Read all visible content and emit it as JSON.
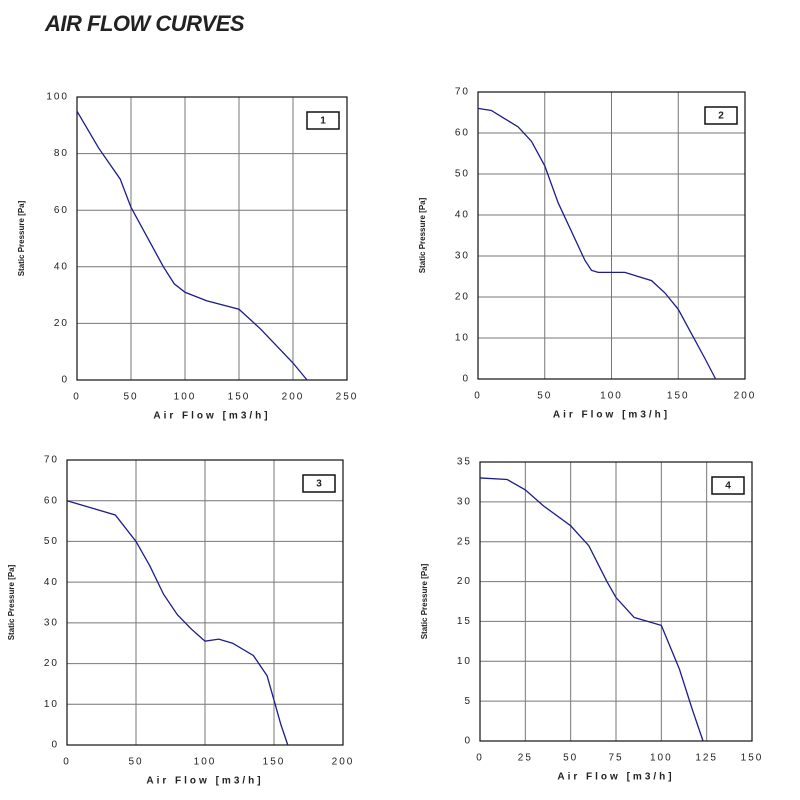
{
  "title": "AIR FLOW CURVES",
  "chart_data": [
    {
      "type": "line",
      "annotation": "1",
      "x_label": "Air Flow [m3/h]",
      "y_label": "Static Pressure [Pa]",
      "color": "#1c1c8c",
      "x": [
        0,
        20,
        40,
        50,
        60,
        80,
        90,
        100,
        120,
        150,
        170,
        190,
        200,
        213
      ],
      "values": [
        95,
        82,
        71,
        61,
        54,
        40,
        34,
        31,
        28,
        25,
        18,
        10,
        6,
        0
      ],
      "xlim": [
        0,
        250
      ],
      "xticks": [
        0,
        50,
        100,
        150,
        200,
        250
      ],
      "ylim": [
        0,
        100
      ],
      "yticks": [
        0,
        20,
        40,
        60,
        80,
        100
      ],
      "grid": true
    },
    {
      "type": "line",
      "annotation": "2",
      "x_label": "Air Flow [m3/h]",
      "y_label": "Static Pressure [Pa]",
      "color": "#1c1c8c",
      "x": [
        0,
        10,
        20,
        30,
        40,
        50,
        60,
        70,
        80,
        85,
        90,
        110,
        130,
        140,
        150,
        160,
        170,
        178
      ],
      "values": [
        66,
        65.5,
        63.5,
        61.5,
        58,
        52,
        43,
        36,
        29,
        26.5,
        26,
        26,
        24,
        21,
        17,
        11,
        5,
        0
      ],
      "xlim": [
        0,
        200
      ],
      "xticks": [
        0,
        50,
        100,
        150,
        200
      ],
      "ylim": [
        0,
        70
      ],
      "yticks": [
        0,
        10,
        20,
        30,
        40,
        50,
        60,
        70
      ],
      "grid": true
    },
    {
      "type": "line",
      "annotation": "3",
      "x_label": "Air Flow [m3/h]",
      "y_label": "Static Pressure [Pa]",
      "color": "#1c1c8c",
      "x": [
        0,
        20,
        35,
        50,
        60,
        70,
        80,
        90,
        100,
        110,
        120,
        135,
        145,
        150,
        155,
        160
      ],
      "values": [
        60,
        58,
        56.5,
        50,
        44,
        37,
        32,
        28.5,
        25.5,
        26,
        25,
        22,
        17,
        11,
        5,
        0
      ],
      "xlim": [
        0,
        200
      ],
      "xticks": [
        0,
        50,
        100,
        150,
        200
      ],
      "ylim": [
        0,
        70
      ],
      "yticks": [
        0,
        10,
        20,
        30,
        40,
        50,
        60,
        70
      ],
      "grid": true
    },
    {
      "type": "line",
      "annotation": "4",
      "x_label": "Air Flow [m3/h]",
      "y_label": "Static Pressure [Pa]",
      "color": "#1c1c8c",
      "x": [
        0,
        15,
        25,
        35,
        50,
        60,
        70,
        75,
        85,
        100,
        110,
        117,
        123
      ],
      "values": [
        33,
        32.8,
        31.5,
        29.5,
        27,
        24.5,
        20,
        18,
        15.5,
        14.5,
        9,
        4,
        0
      ],
      "xlim": [
        0,
        150
      ],
      "xticks": [
        0,
        25,
        50,
        75,
        100,
        125,
        150
      ],
      "ylim": [
        0,
        35
      ],
      "yticks": [
        0,
        5,
        10,
        15,
        20,
        25,
        30,
        35
      ],
      "grid": true
    }
  ]
}
